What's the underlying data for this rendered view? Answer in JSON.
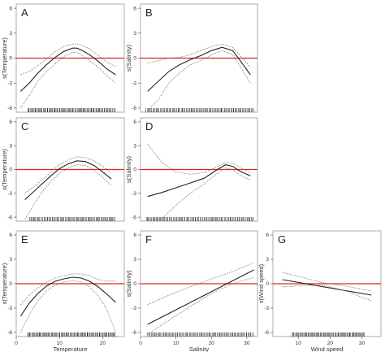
{
  "chart_data": [
    {
      "type": "line",
      "panel": "A",
      "xlabel": "",
      "ylabel": "s(Temperature)",
      "xlim": [
        0,
        25
      ],
      "ylim": [
        -6.5,
        6.5
      ],
      "xticks": [],
      "yticks": [
        -6,
        -3,
        0,
        3,
        6
      ],
      "reference_y": 0,
      "series": [
        {
          "role": "fit",
          "x": [
            1,
            3,
            5,
            7,
            9,
            11,
            13,
            14,
            15,
            17,
            19,
            21,
            23
          ],
          "y": [
            -4.0,
            -3.0,
            -1.8,
            -0.8,
            0.1,
            0.8,
            1.2,
            1.2,
            1.0,
            0.4,
            -0.4,
            -1.3,
            -2.0
          ]
        },
        {
          "role": "upper",
          "x": [
            1,
            3,
            5,
            7,
            9,
            11,
            13,
            14,
            15,
            17,
            19,
            21,
            23
          ],
          "y": [
            -2.0,
            -1.6,
            -0.9,
            -0.1,
            0.8,
            1.4,
            1.7,
            1.7,
            1.6,
            1.1,
            0.3,
            -0.5,
            -1.0
          ]
        },
        {
          "role": "lower",
          "x": [
            1,
            3,
            5,
            7,
            9,
            11,
            13,
            14,
            15,
            17,
            19,
            21,
            23
          ],
          "y": [
            -6.0,
            -4.5,
            -2.8,
            -1.6,
            -0.7,
            0.2,
            0.7,
            0.7,
            0.4,
            -0.3,
            -1.1,
            -2.1,
            -3.0
          ]
        }
      ],
      "rug": {
        "from": 2.5,
        "to": 23,
        "count": 95
      }
    },
    {
      "type": "line",
      "panel": "B",
      "xlabel": "",
      "ylabel": "s(Salinity)",
      "xlim": [
        0,
        33
      ],
      "ylim": [
        -6.5,
        6.5
      ],
      "xticks": [],
      "yticks": [
        -6,
        -3,
        0,
        3,
        6
      ],
      "reference_y": 0,
      "series": [
        {
          "role": "fit",
          "x": [
            2,
            5,
            8,
            11,
            14,
            17,
            20,
            23,
            26,
            29,
            31
          ],
          "y": [
            -4.0,
            -2.8,
            -1.6,
            -0.8,
            -0.2,
            0.3,
            0.9,
            1.3,
            0.9,
            -0.8,
            -2.0
          ]
        },
        {
          "role": "upper",
          "x": [
            2,
            5,
            8,
            11,
            14,
            17,
            20,
            23,
            26,
            29,
            31
          ],
          "y": [
            -0.6,
            -0.3,
            0.0,
            0.1,
            0.4,
            0.9,
            1.4,
            1.7,
            1.3,
            -0.1,
            -1.1
          ]
        },
        {
          "role": "lower",
          "x": [
            2,
            5,
            8,
            11,
            14,
            17,
            20,
            23,
            26,
            29,
            31
          ],
          "y": [
            -6.3,
            -5.0,
            -3.0,
            -1.8,
            -0.8,
            -0.3,
            0.4,
            0.9,
            0.4,
            -1.6,
            -3.0
          ]
        }
      ],
      "rug": {
        "from": 1.5,
        "to": 32,
        "count": 100
      }
    },
    {
      "type": "line",
      "panel": "C",
      "xlabel": "",
      "ylabel": "s(Temperature)",
      "xlim": [
        0,
        25
      ],
      "ylim": [
        -6.5,
        6.5
      ],
      "xticks": [],
      "yticks": [
        -6,
        -3,
        0,
        3,
        6
      ],
      "reference_y": 0,
      "series": [
        {
          "role": "fit",
          "x": [
            2,
            4,
            6,
            8,
            10,
            12,
            14,
            16,
            18,
            20,
            22
          ],
          "y": [
            -3.8,
            -2.8,
            -1.8,
            -0.8,
            0.1,
            0.7,
            1.1,
            1.0,
            0.5,
            -0.3,
            -1.2
          ]
        },
        {
          "role": "upper",
          "x": [
            2,
            4,
            6,
            8,
            10,
            12,
            14,
            16,
            18,
            20,
            22
          ],
          "y": [
            -3.0,
            -2.2,
            -1.3,
            -0.3,
            0.6,
            1.2,
            1.6,
            1.5,
            1.1,
            0.4,
            -0.4
          ]
        },
        {
          "role": "lower",
          "x": [
            2,
            4,
            6,
            8,
            10,
            12,
            14,
            16,
            18,
            20,
            22
          ],
          "y": [
            -6.3,
            -4.5,
            -2.8,
            -1.5,
            -0.5,
            0.2,
            0.6,
            0.5,
            -0.1,
            -1.0,
            -2.0
          ]
        }
      ],
      "rug": {
        "from": 3,
        "to": 23,
        "count": 85
      }
    },
    {
      "type": "line",
      "panel": "D",
      "xlabel": "",
      "ylabel": "s(Salinity)",
      "xlim": [
        0,
        33
      ],
      "ylim": [
        -6.5,
        6.5
      ],
      "xticks": [],
      "yticks": [
        -6,
        -3,
        0,
        3,
        6
      ],
      "reference_y": 0,
      "series": [
        {
          "role": "fit",
          "x": [
            2,
            6,
            10,
            14,
            18,
            21,
            24,
            26,
            28,
            31
          ],
          "y": [
            -3.4,
            -2.9,
            -2.3,
            -1.7,
            -1.1,
            -0.2,
            0.6,
            0.4,
            -0.2,
            -0.8
          ]
        },
        {
          "role": "upper",
          "x": [
            2,
            6,
            10,
            14,
            18,
            21,
            24,
            26,
            28,
            31
          ],
          "y": [
            3.2,
            0.9,
            -0.3,
            -0.6,
            -0.4,
            0.2,
            0.9,
            0.8,
            0.3,
            -0.4
          ]
        },
        {
          "role": "lower",
          "x": [
            2,
            6,
            10,
            14,
            18,
            21,
            24,
            26,
            28,
            31
          ],
          "y": [
            -6.3,
            -6.2,
            -4.5,
            -3.0,
            -1.8,
            -0.7,
            0.2,
            0.0,
            -0.7,
            -1.3
          ]
        }
      ],
      "rug": {
        "from": 1.5,
        "to": 32,
        "count": 100
      }
    },
    {
      "type": "line",
      "panel": "E",
      "xlabel": "Temperature",
      "ylabel": "s(Temperature)",
      "xlim": [
        0,
        25
      ],
      "ylim": [
        -6.5,
        6.5
      ],
      "xticks": [
        0,
        10,
        20
      ],
      "yticks": [
        -6,
        -3,
        0,
        3,
        6
      ],
      "reference_y": 0,
      "series": [
        {
          "role": "fit",
          "x": [
            1,
            3,
            5,
            7,
            9,
            11,
            13,
            15,
            17,
            19,
            21,
            23
          ],
          "y": [
            -4.0,
            -2.4,
            -1.2,
            -0.3,
            0.3,
            0.6,
            0.8,
            0.7,
            0.3,
            -0.4,
            -1.3,
            -2.3
          ]
        },
        {
          "role": "upper",
          "x": [
            1,
            3,
            5,
            7,
            9,
            11,
            13,
            15,
            17,
            19,
            21,
            23
          ],
          "y": [
            -2.6,
            -1.4,
            -0.5,
            0.2,
            0.7,
            1.0,
            1.2,
            1.2,
            1.0,
            0.5,
            0.3,
            0.4
          ]
        },
        {
          "role": "lower",
          "x": [
            1,
            3,
            5,
            7,
            9,
            11,
            13,
            15,
            17,
            19,
            21,
            23
          ],
          "y": [
            -6.0,
            -3.8,
            -2.1,
            -0.9,
            -0.2,
            0.2,
            0.4,
            0.2,
            -0.4,
            -1.5,
            -3.2,
            -6.0
          ]
        }
      ],
      "rug": {
        "from": 2.5,
        "to": 23,
        "count": 100
      }
    },
    {
      "type": "line",
      "panel": "F",
      "xlabel": "Salinity",
      "ylabel": "s(Salinity)",
      "xlim": [
        0,
        33
      ],
      "ylim": [
        -6.5,
        6.5
      ],
      "xticks": [
        0,
        10,
        20,
        30
      ],
      "yticks": [
        -6,
        -3,
        0,
        3,
        6
      ],
      "reference_y": 0,
      "series": [
        {
          "role": "fit",
          "x": [
            2,
            32
          ],
          "y": [
            -5.0,
            1.7
          ]
        },
        {
          "role": "upper",
          "x": [
            2,
            8,
            14,
            20,
            26,
            32
          ],
          "y": [
            -2.6,
            -1.4,
            -0.4,
            0.6,
            1.5,
            2.6
          ]
        },
        {
          "role": "lower",
          "x": [
            2,
            8,
            14,
            20,
            26,
            32
          ],
          "y": [
            -6.2,
            -4.5,
            -2.8,
            -1.2,
            0.0,
            0.8
          ]
        }
      ],
      "rug": {
        "from": 2,
        "to": 32,
        "count": 100
      }
    },
    {
      "type": "line",
      "panel": "G",
      "xlabel": "Wind speed",
      "ylabel": "s(Wind speed)",
      "xlim": [
        2,
        36
      ],
      "ylim": [
        -6.5,
        6.5
      ],
      "xticks": [
        10,
        20,
        30
      ],
      "yticks": [
        -6,
        -3,
        0,
        3,
        6
      ],
      "reference_y": 0,
      "series": [
        {
          "role": "fit",
          "x": [
            5,
            33
          ],
          "y": [
            0.5,
            -1.4
          ]
        },
        {
          "role": "upper",
          "x": [
            5,
            12,
            18,
            25,
            33
          ],
          "y": [
            1.4,
            0.7,
            0.1,
            -0.3,
            -0.9
          ]
        },
        {
          "role": "lower",
          "x": [
            5,
            12,
            18,
            25,
            33
          ],
          "y": [
            -0.4,
            -0.2,
            -0.2,
            -0.9,
            -2.1
          ]
        }
      ],
      "rug": {
        "from": 8,
        "to": 31,
        "count": 85
      }
    }
  ]
}
